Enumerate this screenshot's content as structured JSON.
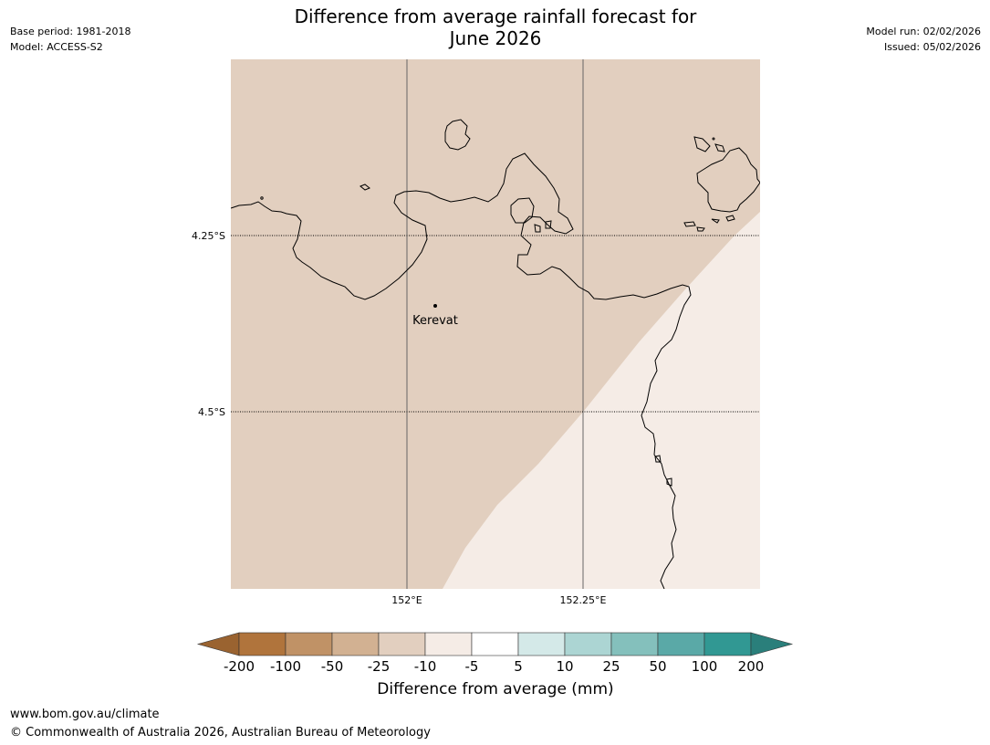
{
  "header": {
    "title_line1": "Difference from average rainfall forecast for",
    "title_line2": "June 2026",
    "base_period": "Base period: 1981-2018",
    "model": "Model: ACCESS-S2",
    "model_run": "Model run: 02/02/2026",
    "issued": "Issued: 05/02/2026"
  },
  "map": {
    "lat_labels": [
      "4.25°S",
      "4.5°S"
    ],
    "lon_labels": [
      "152°E",
      "152.25°E"
    ],
    "place": {
      "name": "Kerevat"
    },
    "fill_colors": {
      "dry_region": "#e2cfbf",
      "near_average_region": "#f5ece6"
    },
    "coastline_color": "#000000"
  },
  "legend": {
    "title": "Difference from average (mm)",
    "tick_labels": [
      "-200",
      "-100",
      "-50",
      "-25",
      "-10",
      "-5",
      "5",
      "10",
      "25",
      "50",
      "100",
      "200"
    ],
    "colors": [
      "#9a6330",
      "#b0743c",
      "#c09266",
      "#d2b192",
      "#e2cfbf",
      "#f5ece6",
      "#ffffff",
      "#d4e9e8",
      "#acd5d3",
      "#84c0bc",
      "#5aa9a7",
      "#319893",
      "#2a7f7b"
    ]
  },
  "footer": {
    "url": "www.bom.gov.au/climate",
    "copyright": "© Commonwealth of Australia 2026, Australian Bureau of Meteorology"
  }
}
